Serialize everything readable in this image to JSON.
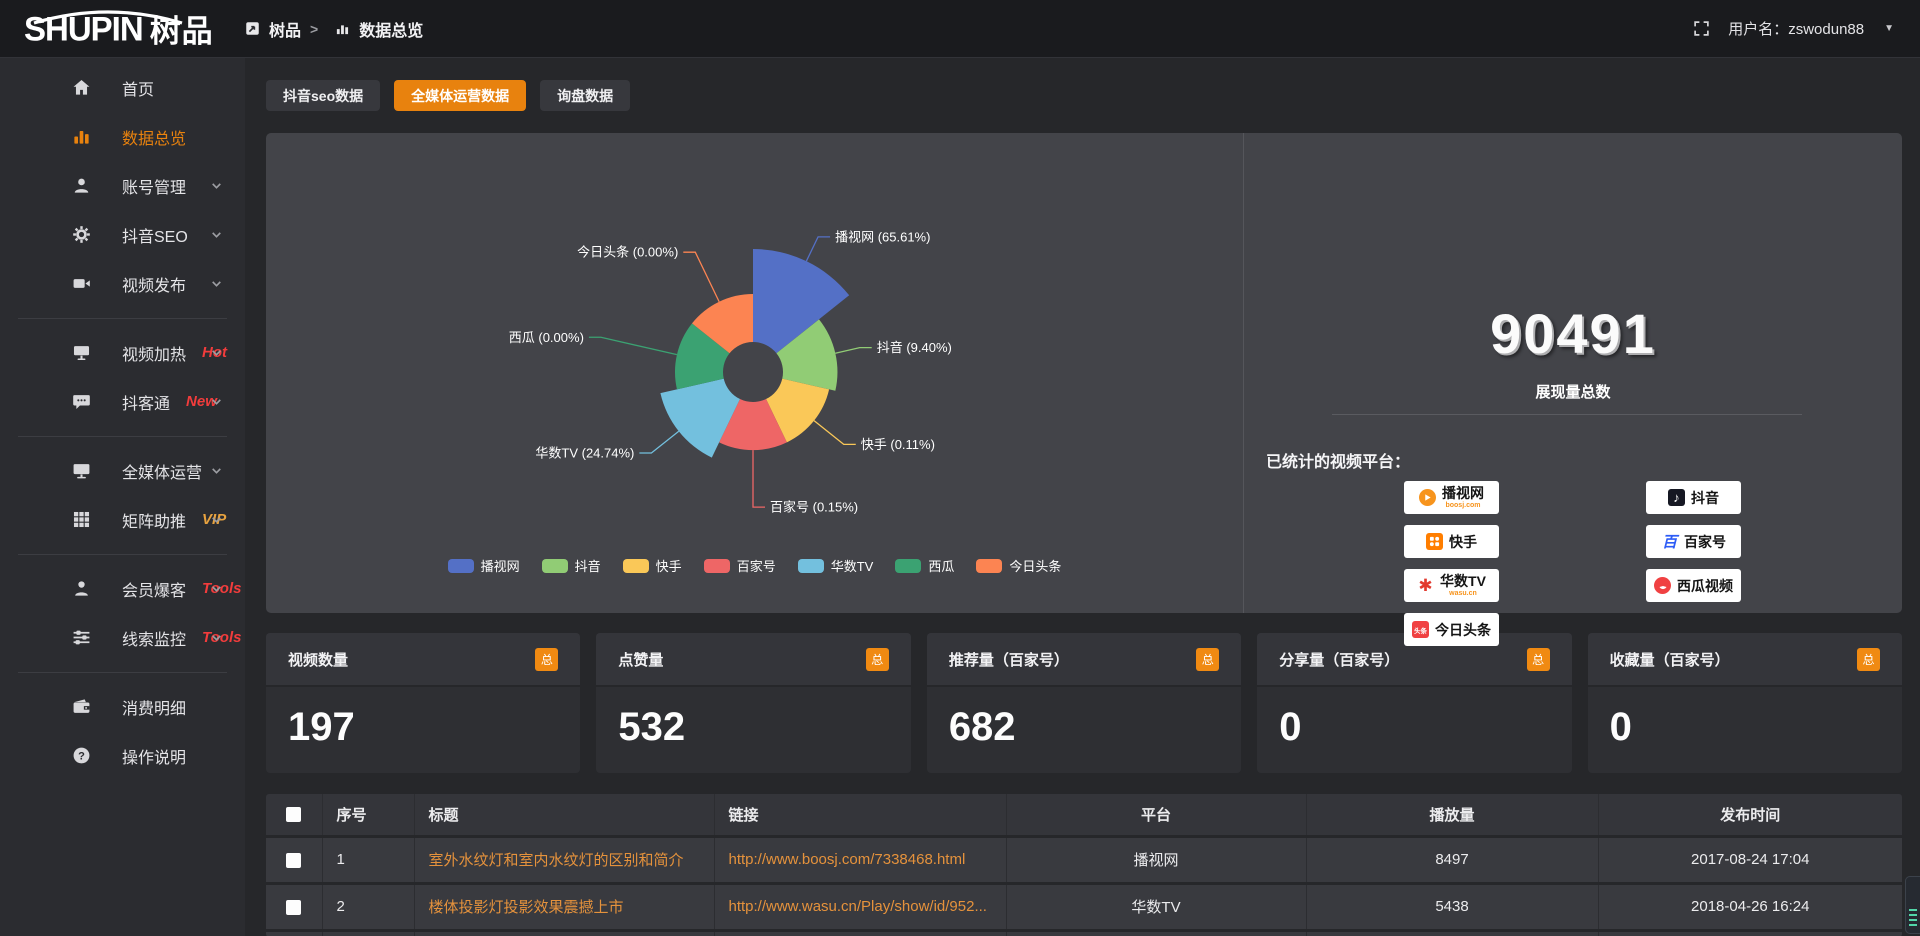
{
  "topbar": {
    "logo_primary": "SHUPIN",
    "logo_secondary": "树品",
    "breadcrumb_home": "树品",
    "breadcrumb_sep": ">",
    "breadcrumb_current": "数据总览",
    "username": "用户名：zswodun88"
  },
  "sidebar": {
    "items": [
      {
        "icon": "home",
        "label": "首页"
      },
      {
        "icon": "barchart",
        "label": "数据总览",
        "active": true
      },
      {
        "icon": "user",
        "label": "账号管理",
        "chevron": true
      },
      {
        "icon": "gear",
        "label": "抖音SEO",
        "chevron": true
      },
      {
        "icon": "video",
        "label": "视频发布",
        "chevron": true,
        "divider_after": true
      },
      {
        "icon": "screen",
        "label": "视频加热",
        "badge": "Hot",
        "badge_color": "#f23c3c",
        "chevron": true
      },
      {
        "icon": "chat",
        "label": "抖客通",
        "badge": "New",
        "badge_color": "#f23c3c",
        "chevron": true,
        "divider_after": true
      },
      {
        "icon": "monitor",
        "label": "全媒体运营",
        "chevron": true
      },
      {
        "icon": "grid",
        "label": "矩阵助推",
        "badge": "VIP",
        "badge_color": "#e7a23f",
        "chevron": true,
        "divider_after": true
      },
      {
        "icon": "person",
        "label": "会员爆客",
        "badge": "Tools",
        "badge_color": "#f23c3c",
        "chevron": true
      },
      {
        "icon": "sliders",
        "label": "线索监控",
        "badge": "Tools",
        "badge_color": "#f23c3c",
        "chevron": true,
        "divider_after": true
      },
      {
        "icon": "wallet",
        "label": "消费明细"
      },
      {
        "icon": "question",
        "label": "操作说明"
      }
    ]
  },
  "tabs": [
    {
      "label": "抖音seo数据",
      "active": false
    },
    {
      "label": "全媒体运营数据",
      "active": true
    },
    {
      "label": "询盘数据",
      "active": false
    }
  ],
  "chart_data": {
    "type": "pie",
    "rose": true,
    "legend_position": "bottom",
    "label_format": "{name} ({percent}%)",
    "series": [
      {
        "name": "播视网",
        "percent": 65.61,
        "color": "#5470c6"
      },
      {
        "name": "抖音",
        "percent": 9.4,
        "color": "#91cc75"
      },
      {
        "name": "快手",
        "percent": 0.11,
        "color": "#fac858"
      },
      {
        "name": "百家号",
        "percent": 0.15,
        "color": "#ee6666"
      },
      {
        "name": "华数TV",
        "percent": 24.74,
        "color": "#73c0de"
      },
      {
        "name": "西瓜",
        "percent": 0.0,
        "color": "#3ba272"
      },
      {
        "name": "今日头条",
        "percent": 0.0,
        "color": "#fc8452"
      }
    ]
  },
  "summary": {
    "total_value": "90491",
    "total_label": "展现量总数",
    "platforms_title": "已统计的视频平台：",
    "platforms": [
      {
        "name": "播视网",
        "sub": "boosj.com",
        "icon": "boosj",
        "col": 1,
        "row": 1
      },
      {
        "name": "快手",
        "sub": "",
        "icon": "kuaishou",
        "col": 1,
        "row": 2
      },
      {
        "name": "华数TV",
        "sub": "wasu.cn",
        "icon": "wasu",
        "col": 1,
        "row": 3
      },
      {
        "name": "今日头条",
        "sub": "",
        "icon": "toutiao",
        "col": 1,
        "row": 4
      },
      {
        "name": "抖音",
        "sub": "",
        "icon": "douyin",
        "col": 2,
        "row": 1
      },
      {
        "name": "百家号",
        "sub": "",
        "icon": "baijiahao",
        "col": 2,
        "row": 2
      },
      {
        "name": "西瓜视频",
        "sub": "",
        "icon": "xigua",
        "col": 2,
        "row": 3
      }
    ]
  },
  "stat_cards": [
    {
      "label": "视频数量",
      "badge": "总",
      "value": "197"
    },
    {
      "label": "点赞量",
      "badge": "总",
      "value": "532"
    },
    {
      "label": "推荐量（百家号）",
      "badge": "总",
      "value": "682"
    },
    {
      "label": "分享量（百家号）",
      "badge": "总",
      "value": "0"
    },
    {
      "label": "收藏量（百家号）",
      "badge": "总",
      "value": "0"
    }
  ],
  "table": {
    "headers": [
      "序号",
      "标题",
      "链接",
      "平台",
      "播放量",
      "发布时间"
    ],
    "rows": [
      {
        "index": "1",
        "title": "室外水纹灯和室内水纹灯的区别和简介",
        "link": "http://www.boosj.com/7338468.html",
        "platform": "播视网",
        "plays": "8497",
        "time": "2017-08-24 17:04"
      },
      {
        "index": "2",
        "title": "楼体投影灯投影效果震撼上市",
        "link": "http://www.wasu.cn/Play/show/id/952...",
        "platform": "华数TV",
        "plays": "5438",
        "time": "2018-04-26 16:24"
      }
    ]
  }
}
